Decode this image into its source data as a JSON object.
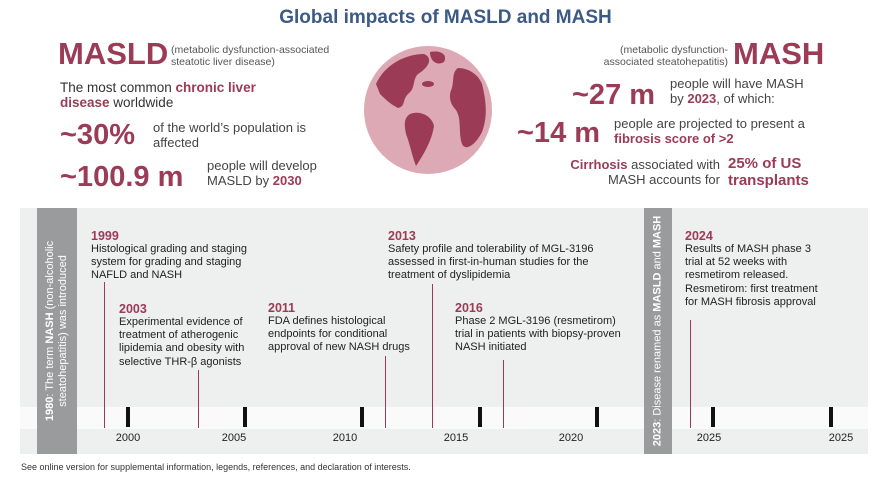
{
  "title": "Global impacts of MASLD and MASH",
  "colors": {
    "accent": "#9b3b55",
    "title": "#3c5a86",
    "band": "#eeefef",
    "bar": "#9a9b9c"
  },
  "masld": {
    "name": "MASLD",
    "full_name": "(metabolic dysfunction-associated steatotic liver disease)",
    "desc_pre": "The most common ",
    "desc_hl": "chronic liver disease",
    "desc_post": " worldwide",
    "stat1_value": "~30%",
    "stat1_text": "of the world’s population is affected",
    "stat2_value": "~100.9 m",
    "stat2_text_pre": "people will develop MASLD by ",
    "stat2_year": "2030"
  },
  "mash": {
    "name": "MASH",
    "full_name": "(metabolic dysfunction-associated steatohepatitis)",
    "stat1_value": "~27 m",
    "stat1_text_pre": "people will have MASH by ",
    "stat1_year": "2023",
    "stat1_text_post": ", of which:",
    "stat2_value": "~14 m",
    "stat2_text_pre": "people are projected to present a ",
    "stat2_hl": "fibrosis score of >2",
    "cirrhosis_hl": "Cirrhosis",
    "cirrhosis_text": " associated with MASH accounts for",
    "transplant_hl": "25% of US transplants"
  },
  "globe": {
    "icon": "globe-icon",
    "ocean": "#dca9b5",
    "land": "#9b3b55"
  },
  "timeline": {
    "bar1_year": "1980",
    "bar1_text": ": The term ",
    "bar1_hl": "NASH",
    "bar1_text2": " (non-alcoholic",
    "bar1_line2": "steatohepatitis) was introduced",
    "bar2_year": "2023",
    "bar2_text": ": Disease renamed as ",
    "bar2_hl1": "MASLD",
    "bar2_and": " and ",
    "bar2_hl2": "MASH",
    "events": [
      {
        "year": "1999",
        "text": "Histological grading and staging system for grading and staging NAFLD and NASH"
      },
      {
        "year": "2003",
        "text": "Experimental evidence of treatment of atherogenic lipidemia and obesity with selective THR-β agonists"
      },
      {
        "year": "2011",
        "text": "FDA defines histological endpoints for conditional approval of new NASH drugs"
      },
      {
        "year": "2013",
        "text": "Safety profile and tolerability of MGL-3196 assessed in first-in-human studies for the treatment of dyslipidemia"
      },
      {
        "year": "2016",
        "text": "Phase 2 MGL-3196 (resmetirom) trial in patients with biopsy-proven NASH initiated"
      },
      {
        "year": "2024",
        "text": "Results of MASH phase 3 trial at 52 weeks with resmetirom released. Resmetirom: first treatment for MASH fibrosis approval"
      }
    ],
    "axis_labels": [
      "2000",
      "2005",
      "2010",
      "2015",
      "2020",
      "2025",
      "2025"
    ]
  },
  "footer": "See online version for supplemental information, legends, references, and declaration of interests."
}
